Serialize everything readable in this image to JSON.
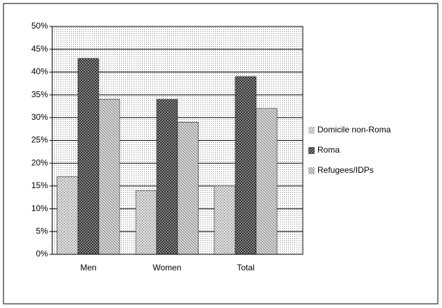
{
  "chart_data": {
    "type": "bar",
    "categories": [
      "Men",
      "Women",
      "Total"
    ],
    "series": [
      {
        "name": "Domicile non-Roma",
        "color": "#d8d8d8",
        "values": [
          17,
          14,
          15
        ]
      },
      {
        "name": "Roma",
        "color": "#303030",
        "values": [
          43,
          34,
          39
        ]
      },
      {
        "name": "Refugees/IDPs",
        "color": "#a8a8a8",
        "values": [
          34,
          29,
          32
        ]
      }
    ],
    "ylim": [
      0,
      50
    ],
    "yticks": [
      {
        "value": 0,
        "label": "0%"
      },
      {
        "value": 5,
        "label": "5%"
      },
      {
        "value": 10,
        "label": "10%"
      },
      {
        "value": 15,
        "label": "15%"
      },
      {
        "value": 20,
        "label": "20%"
      },
      {
        "value": 25,
        "label": "25%"
      },
      {
        "value": 30,
        "label": "30%"
      },
      {
        "value": 35,
        "label": "35%"
      },
      {
        "value": 40,
        "label": "40%"
      },
      {
        "value": 45,
        "label": "45%"
      },
      {
        "value": 50,
        "label": "50%"
      }
    ],
    "grid": true,
    "legend": "right"
  }
}
